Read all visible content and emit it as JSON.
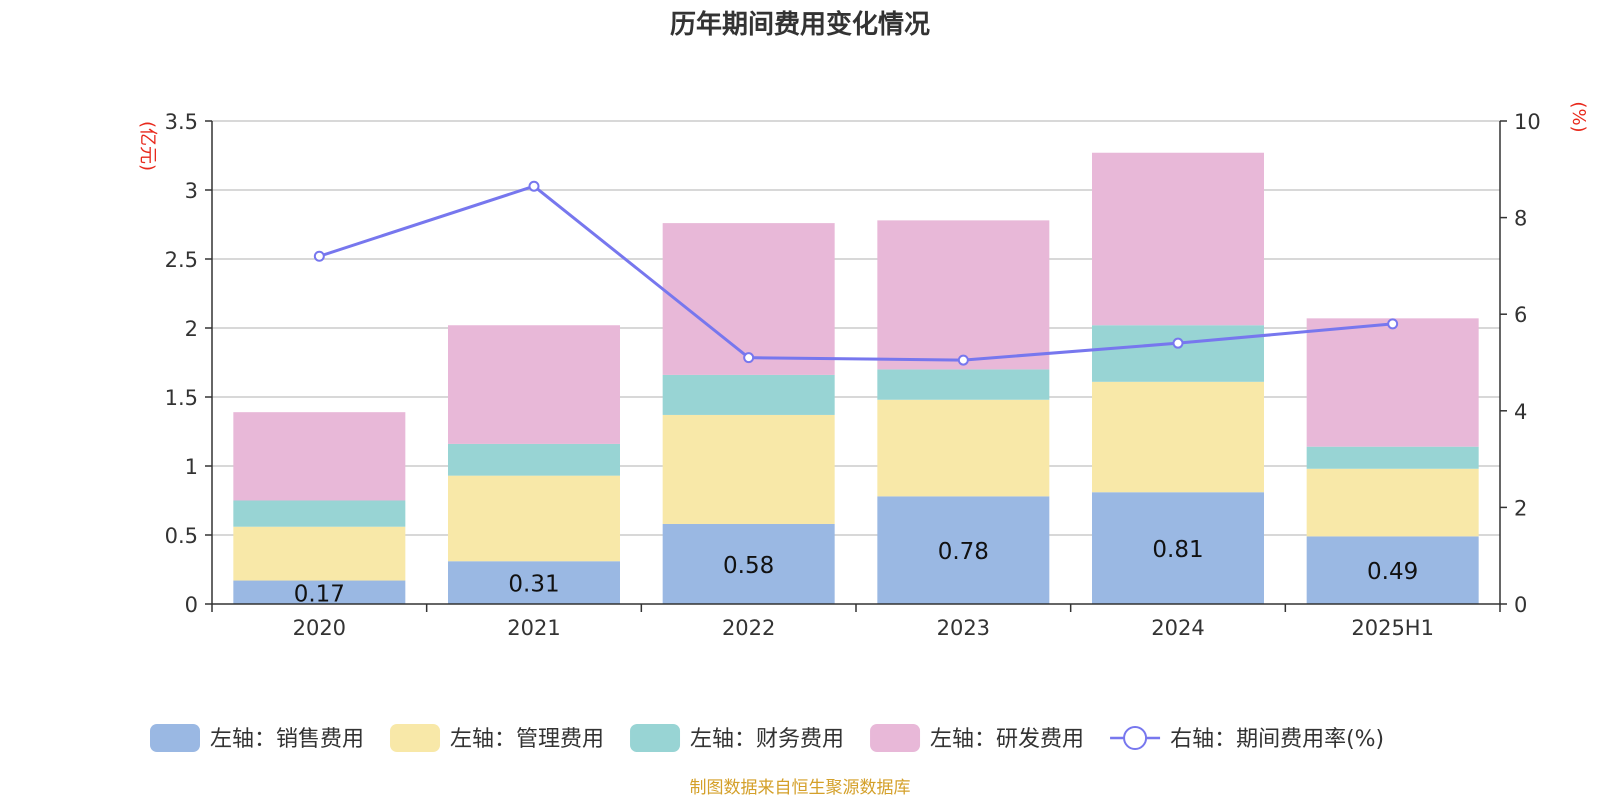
{
  "chart_data": {
    "type": "bar",
    "title": "历年期间费用变化情况",
    "categories": [
      "2020",
      "2021",
      "2022",
      "2023",
      "2024",
      "2025H1"
    ],
    "y_left": {
      "unit": "(亿元)",
      "range": [
        0,
        3.5
      ],
      "ticks": [
        "0",
        "0.5",
        "1",
        "1.5",
        "2",
        "2.5",
        "3",
        "3.5"
      ]
    },
    "y_right": {
      "unit": "(%)",
      "range": [
        0,
        10
      ],
      "ticks": [
        "0",
        "2",
        "4",
        "6",
        "8",
        "10"
      ]
    },
    "stacked": true,
    "grid": true,
    "legend_position": "bottom",
    "series": [
      {
        "name": "左轴：销售费用",
        "color": "#9ab8e3",
        "values": [
          0.17,
          0.31,
          0.58,
          0.78,
          0.81,
          0.49
        ],
        "labels": [
          "0.17",
          "0.31",
          "0.58",
          "0.78",
          "0.81",
          "0.49"
        ]
      },
      {
        "name": "左轴：管理费用",
        "color": "#f8e8a8",
        "values": [
          0.39,
          0.62,
          0.79,
          0.7,
          0.8,
          0.49
        ]
      },
      {
        "name": "左轴：财务费用",
        "color": "#98d4d4",
        "values": [
          0.19,
          0.23,
          0.29,
          0.22,
          0.41,
          0.16
        ]
      },
      {
        "name": "左轴：研发费用",
        "color": "#e8b8d8",
        "values": [
          0.64,
          0.86,
          1.1,
          1.08,
          1.25,
          0.93
        ]
      }
    ],
    "line_series": {
      "name": "右轴：期间费用率(%)",
      "color": "#7777ee",
      "axis": "right",
      "values": [
        7.2,
        8.65,
        5.1,
        5.05,
        5.4,
        5.8
      ]
    },
    "source": "制图数据来自恒生聚源数据库"
  }
}
